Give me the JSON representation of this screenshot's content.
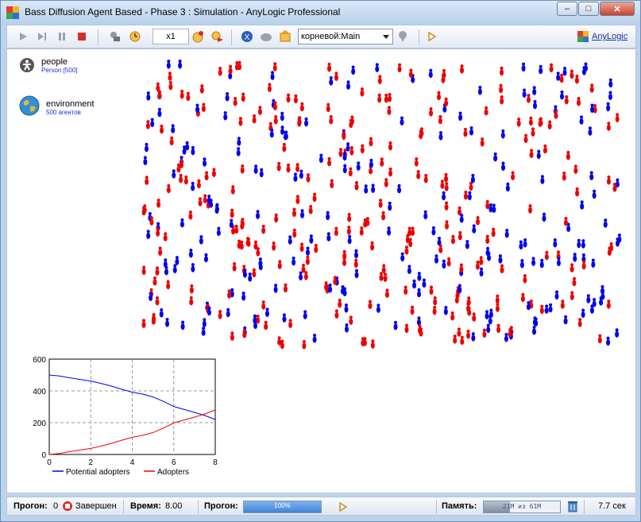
{
  "window": {
    "title": "Bass Diffusion Agent Based - Phase 3 : Simulation - AnyLogic Professional",
    "minimize": "–",
    "maximize": "□",
    "close": "✕"
  },
  "toolbar": {
    "speed": "x1",
    "experiment_selector": "корневой:Main",
    "brand_link": "AnyLogic",
    "icons": [
      "run-icon",
      "step-icon",
      "pause-icon",
      "stop-icon",
      "run-until-icon",
      "time-mode-icon",
      "slower-icon",
      "faster-icon",
      "navigate-icon",
      "agent-icon",
      "home-icon",
      "selector-icon",
      "view-icon"
    ]
  },
  "model_objects": [
    {
      "name": "people",
      "detail": "Person [500]",
      "icon": "person-icon"
    },
    {
      "name": "environment",
      "detail": "500 агентов",
      "icon": "globe-icon"
    }
  ],
  "colors": {
    "potential_adopter": "#0000ee",
    "adopter": "#ee0000"
  },
  "chart_data": {
    "type": "line",
    "x": [
      0,
      0.5,
      1,
      1.5,
      2,
      2.5,
      3,
      3.5,
      4,
      4.5,
      5,
      5.5,
      6,
      6.5,
      7,
      7.5,
      8
    ],
    "series": [
      {
        "name": "Potential adopters",
        "color": "#0000ee",
        "values": [
          500,
          494,
          482,
          472,
          462,
          447,
          430,
          410,
          392,
          380,
          362,
          334,
          302,
          283,
          265,
          245,
          220
        ]
      },
      {
        "name": "Adopters",
        "color": "#ee0000",
        "values": [
          0,
          6,
          18,
          28,
          38,
          53,
          70,
          90,
          108,
          120,
          138,
          166,
          198,
          217,
          235,
          255,
          280
        ]
      }
    ],
    "xlim": [
      0,
      8
    ],
    "ylim": [
      0,
      600
    ],
    "xticks": [
      0,
      2,
      4,
      6,
      8
    ],
    "yticks": [
      0,
      200,
      400,
      600
    ],
    "grid": true,
    "legend": "bottom"
  },
  "status": {
    "run_label": "Прогон:",
    "run_value": "0",
    "state": "Завершен",
    "time_label": "Время:",
    "time_value": "8.00",
    "progress_label": "Прогон:",
    "progress_value": 1.0,
    "progress_text": "100%",
    "memory_label": "Память:",
    "memory_text": "21M из 61M",
    "memory_fraction": 0.34,
    "elapsed": "7.7 сек"
  }
}
